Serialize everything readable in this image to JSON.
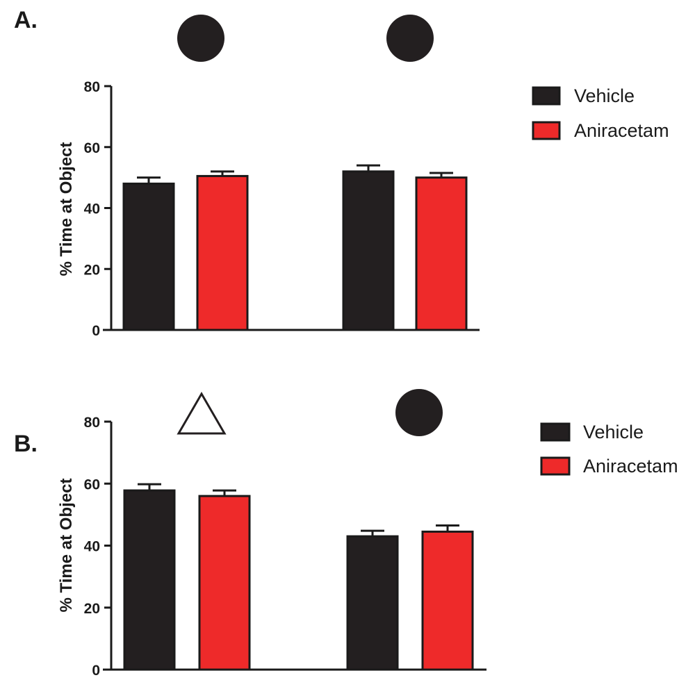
{
  "chart_data": [
    {
      "type": "bar",
      "panel_label": "A.",
      "ylabel": "% Time at Object",
      "ylim": [
        0,
        80
      ],
      "yticks": [
        "0",
        "20",
        "40",
        "60",
        "80"
      ],
      "categories": [
        "circle-object",
        "circle-object"
      ],
      "category_icons": [
        "circle",
        "circle"
      ],
      "series": [
        {
          "name": "Vehicle",
          "color": "#231f20",
          "values": [
            48,
            52
          ],
          "errors": [
            2,
            2
          ]
        },
        {
          "name": "Aniracetam",
          "color": "#ee2a2a",
          "values": [
            50.5,
            50
          ],
          "errors": [
            1.5,
            1.5
          ]
        }
      ],
      "legend": {
        "position": "top-right",
        "entries": [
          "Vehicle",
          "Aniracetam"
        ]
      }
    },
    {
      "type": "bar",
      "panel_label": "B.",
      "ylabel": "% Time at Object",
      "ylim": [
        0,
        80
      ],
      "yticks": [
        "0",
        "20",
        "40",
        "60",
        "80"
      ],
      "categories": [
        "triangle-object",
        "circle-object"
      ],
      "category_icons": [
        "triangle",
        "circle"
      ],
      "series": [
        {
          "name": "Vehicle",
          "color": "#231f20",
          "values": [
            57.8,
            43
          ],
          "errors": [
            2,
            1.8
          ]
        },
        {
          "name": "Aniracetam",
          "color": "#ee2a2a",
          "values": [
            56,
            44.5
          ],
          "errors": [
            1.8,
            2
          ]
        }
      ],
      "legend": {
        "position": "top-right",
        "entries": [
          "Vehicle",
          "Aniracetam"
        ]
      }
    }
  ]
}
